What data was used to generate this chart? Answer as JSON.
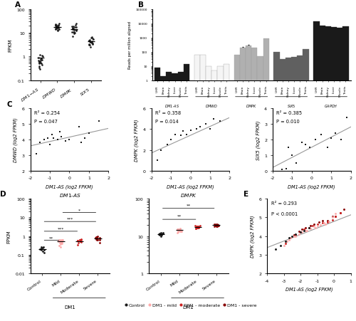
{
  "panel_A": {
    "ylabel": "FPKM",
    "categories": [
      "DM1-AS",
      "DMWD",
      "DMPK",
      "SIX5"
    ],
    "data": {
      "DM1-AS": [
        0.3,
        0.45,
        0.5,
        0.55,
        0.6,
        0.65,
        0.7,
        0.75,
        0.8,
        0.85,
        0.9,
        1.0,
        1.1,
        0.4,
        0.35,
        0.5,
        0.6,
        0.7,
        1.2,
        0.55
      ],
      "DMWD": [
        12,
        14,
        15,
        16,
        18,
        20,
        22,
        18,
        17,
        15,
        13,
        21,
        23,
        25,
        14,
        16,
        19,
        20,
        22,
        16
      ],
      "DMPK": [
        7,
        9,
        11,
        13,
        15,
        17,
        19,
        13,
        11,
        15,
        17,
        21,
        24,
        13,
        10,
        12,
        16,
        14,
        18,
        11
      ],
      "SIX5": [
        2.5,
        3.0,
        3.5,
        4.0,
        5.0,
        6.0,
        4.5,
        3.2,
        4.8,
        5.5,
        3.8,
        4.5,
        3.2,
        5.8,
        6.5,
        3.8,
        4.5,
        3.0,
        4.2,
        4.8
      ]
    },
    "medians": {
      "DM1-AS": 0.9,
      "DMWD": 17.5,
      "DMPK": 14.5,
      "SIX5": 4.3
    },
    "ylim": [
      0.1,
      100
    ],
    "yticks": [
      0.1,
      1,
      10,
      100
    ]
  },
  "panel_B": {
    "ylabel": "Reads per million aligned",
    "gene_groups": [
      "DM1-AS",
      "DMWD",
      "DMPK",
      "SIX5",
      "GAPDH"
    ],
    "tissues": [
      "UHR",
      "Brain",
      "Kidney",
      "Liver",
      "Muscle",
      "Testis"
    ],
    "bar_colors": {
      "DM1-AS": "#1a1a1a",
      "DMWD": "#f5f5f5",
      "DMPK": "#b0b0b0",
      "SIX5": "#606060",
      "GAPDH": "#1a1a1a"
    },
    "bar_edge_colors": {
      "DM1-AS": "#1a1a1a",
      "DMWD": "#999999",
      "DMPK": "#999999",
      "SIX5": "#606060",
      "GAPDH": "#1a1a1a"
    },
    "data": {
      "DM1-AS": [
        8,
        2,
        4,
        3,
        4,
        13
      ],
      "DMWD": [
        60,
        60,
        10,
        5,
        10,
        14
      ],
      "DMPK": [
        60,
        200,
        280,
        200,
        50,
        900
      ],
      "SIX5": [
        100,
        30,
        40,
        45,
        55,
        160
      ],
      "GAPDH": [
        13000,
        7000,
        6000,
        5500,
        5000,
        5800
      ]
    },
    "error": {
      "DM1-AS": [
        0,
        0,
        0,
        0,
        0,
        0
      ],
      "DMWD": [
        0,
        0,
        0,
        0,
        0,
        0
      ],
      "DMPK": [
        0,
        25,
        25,
        0,
        0,
        0
      ],
      "SIX5": [
        0,
        0,
        0,
        0,
        0,
        0
      ],
      "GAPDH": [
        0,
        0,
        0,
        0,
        0,
        0
      ]
    },
    "ylim_min": 1,
    "ylim_max": 100000,
    "ytick_labels": [
      "1",
      "10",
      "100",
      "1000",
      "10000",
      "100000"
    ]
  },
  "panel_C": {
    "plots": [
      {
        "xlabel": "DM1-AS (log2 FPKM)",
        "ylabel": "DMWD (log2 FPKM)",
        "r2": "0.254",
        "p": "0.047",
        "xlim": [
          -2,
          2
        ],
        "ylim": [
          2,
          6
        ],
        "yticks": [
          2,
          3,
          4,
          5,
          6
        ],
        "x": [
          -1.7,
          -1.5,
          -1.3,
          -1.1,
          -1.0,
          -0.9,
          -0.8,
          -0.6,
          -0.5,
          -0.4,
          -0.2,
          0.0,
          0.5,
          0.6,
          0.8,
          1.0,
          1.5
        ],
        "y": [
          3.1,
          3.8,
          4.0,
          4.1,
          3.7,
          4.3,
          4.1,
          4.0,
          4.5,
          4.2,
          3.9,
          4.0,
          4.8,
          3.8,
          4.1,
          4.4,
          5.2
        ],
        "slope": 0.28,
        "intercept": 4.15
      },
      {
        "xlabel": "DM1-AS (log2 FPKM)",
        "ylabel": "DMPK (log2 FPKM)",
        "r2": "0.358",
        "p": "0.014",
        "xlim": [
          -2,
          2
        ],
        "ylim": [
          0,
          6
        ],
        "yticks": [
          0,
          2,
          4,
          6
        ],
        "x": [
          -1.7,
          -1.5,
          -1.2,
          -1.0,
          -0.8,
          -0.5,
          -0.4,
          -0.2,
          0.0,
          0.3,
          0.5,
          0.8,
          1.0,
          1.2,
          1.5
        ],
        "y": [
          1.0,
          2.0,
          2.5,
          3.0,
          3.5,
          3.4,
          3.8,
          3.5,
          3.9,
          4.0,
          4.2,
          4.5,
          4.0,
          5.0,
          4.8
        ],
        "slope": 0.85,
        "intercept": 3.4
      },
      {
        "xlabel": "DM1-AS (log2 FPKM)",
        "ylabel": "SIX5 (log2 FPKM)",
        "r2": "0.385",
        "p": "0.010",
        "xlim": [
          -2,
          2
        ],
        "ylim": [
          0,
          4
        ],
        "yticks": [
          0,
          1,
          2,
          3,
          4
        ],
        "x": [
          -1.5,
          -1.3,
          -1.2,
          -1.0,
          -0.8,
          -0.5,
          -0.3,
          -0.1,
          0.2,
          0.5,
          0.8,
          1.0,
          1.2,
          1.5,
          1.8
        ],
        "y": [
          0.1,
          0.15,
          1.5,
          1.0,
          0.5,
          1.8,
          1.7,
          1.5,
          2.0,
          2.3,
          1.5,
          2.1,
          2.4,
          2.0,
          3.4
        ],
        "slope": 0.65,
        "intercept": 1.5
      }
    ]
  },
  "panel_D": {
    "title_left": "DM1-AS",
    "title_right": "DMPK",
    "ylabel": "FPKM",
    "categories": [
      "Control",
      "Mild",
      "Moderate",
      "Severe"
    ],
    "DM1AS_data": {
      "Control": [
        0.13,
        0.15,
        0.18,
        0.2,
        0.22,
        0.25,
        0.27,
        0.23,
        0.19
      ],
      "Mild": [
        0.25,
        0.3,
        0.4,
        0.5,
        0.55,
        0.6,
        0.65,
        0.45,
        0.5,
        0.55,
        0.6,
        0.5,
        0.42,
        0.58,
        0.52,
        0.62,
        0.43,
        0.38,
        0.48,
        0.58
      ],
      "Moderate": [
        0.35,
        0.45,
        0.55,
        0.65,
        0.5,
        0.6,
        0.7,
        0.5,
        0.58,
        0.48,
        0.62,
        0.52
      ],
      "Severe": [
        0.45,
        0.6,
        0.7,
        0.85,
        0.95,
        0.65,
        0.75,
        0.82,
        0.72,
        0.62,
        0.88,
        0.78,
        0.68,
        0.82,
        0.88
      ]
    },
    "DMPK_data": {
      "Control": [
        10,
        10.5,
        11,
        11.5,
        12,
        11,
        10.5,
        11.5,
        10.8,
        11.2,
        12.5,
        11.8
      ],
      "Mild": [
        12,
        13,
        14,
        15,
        15.5,
        14.5,
        13.5,
        15.5,
        14.5,
        13.8,
        14.8,
        13.2,
        14.2,
        15.0,
        15.8,
        14.0,
        14.6,
        13.3,
        14.1,
        15.5
      ],
      "Moderate": [
        16,
        17,
        18,
        19,
        18.5,
        17.5,
        16.5,
        18.2,
        17.2,
        18.0,
        18.8,
        16.2,
        17.0
      ],
      "Severe": [
        18,
        19,
        19.5,
        20,
        20.5,
        19,
        18.5,
        19.2,
        20.0,
        20.8,
        19.5,
        20.2,
        18.3,
        19.3,
        20.3
      ]
    },
    "DM1AS_medians": {
      "Control": 0.2,
      "Mild": 0.51,
      "Moderate": 0.54,
      "Severe": 0.75
    },
    "DMPK_medians": {
      "Control": 11.2,
      "Mild": 14.6,
      "Moderate": 17.6,
      "Severe": 19.5
    },
    "DM1AS_ylim": [
      0.01,
      100
    ],
    "DM1AS_yticks": [
      0.01,
      0.1,
      1,
      10,
      100
    ],
    "DMPK_ylim": [
      1,
      100
    ],
    "DMPK_yticks": [
      1,
      10,
      100
    ],
    "sig_DM1AS": [
      [
        1,
        2,
        "**",
        0.6
      ],
      [
        1,
        3,
        "***",
        1.8
      ],
      [
        1,
        4,
        "***",
        6.0
      ],
      [
        2,
        4,
        "*",
        18.0
      ]
    ],
    "sig_DMPK": [
      [
        1,
        3,
        "**",
        28
      ],
      [
        1,
        4,
        "**",
        55
      ]
    ],
    "cat_colors": {
      "Control": "#1a1a1a",
      "Mild": "#ffaaaa",
      "Moderate": "#cc2222",
      "Severe": "#880000"
    }
  },
  "panel_E": {
    "xlabel": "DM1-AS (log2 FPKM)",
    "ylabel": "DMPK (log2 FPKM)",
    "r2": "0.293",
    "p": "< 0.0001",
    "xlim": [
      -4,
      1
    ],
    "ylim": [
      2,
      6
    ],
    "yticks": [
      2,
      3,
      4,
      5,
      6
    ],
    "xticks": [
      -4,
      -3,
      -2,
      -1,
      0,
      1
    ],
    "control_x": [
      -3.5,
      -3.2,
      -2.9,
      -2.7,
      -2.5,
      -2.3,
      -2.0,
      -1.8,
      -1.5
    ],
    "control_y": [
      3.3,
      3.5,
      3.7,
      3.9,
      4.0,
      4.1,
      4.2,
      4.3,
      4.45
    ],
    "mild_x": [
      -3.0,
      -2.8,
      -2.6,
      -2.3,
      -2.1,
      -1.9,
      -1.7,
      -1.4,
      -1.2,
      -1.0,
      -0.8,
      -0.6,
      -0.3,
      -0.1,
      0.1,
      -2.4,
      -1.6,
      -1.1,
      -0.5,
      -2.7
    ],
    "mild_y": [
      3.5,
      3.7,
      3.9,
      4.0,
      4.1,
      4.2,
      4.3,
      4.4,
      4.5,
      4.55,
      4.6,
      4.7,
      4.8,
      5.0,
      5.2,
      4.0,
      4.3,
      4.45,
      4.65,
      3.8
    ],
    "moderate_x": [
      -2.9,
      -2.6,
      -2.3,
      -2.0,
      -1.8,
      -1.5,
      -1.3,
      -1.0,
      -0.7,
      -0.4,
      -0.1,
      0.1,
      0.4
    ],
    "moderate_y": [
      3.6,
      3.9,
      4.05,
      4.2,
      4.35,
      4.45,
      4.55,
      4.65,
      4.7,
      4.75,
      4.85,
      5.05,
      5.25
    ],
    "severe_x": [
      -2.4,
      -2.1,
      -1.9,
      -1.7,
      -1.4,
      -1.2,
      -0.9,
      -0.7,
      -0.4,
      -0.1,
      0.1,
      0.4,
      0.6
    ],
    "severe_y": [
      4.05,
      4.25,
      4.35,
      4.45,
      4.55,
      4.65,
      4.75,
      4.82,
      4.82,
      5.05,
      5.05,
      5.25,
      5.45
    ],
    "slope": 0.35,
    "intercept": 4.78,
    "colors": {
      "Control": "#1a1a1a",
      "Mild": "#ffaaaa",
      "Moderate": "#cc2222",
      "Severe": "#880000"
    }
  },
  "legend": {
    "entries": [
      "Control",
      "DM1 - mild",
      "DM1 - moderate",
      "DM1 - severe"
    ],
    "colors": [
      "#1a1a1a",
      "#ffaaaa",
      "#cc2222",
      "#880000"
    ]
  },
  "scatter_color": "#1a1a1a",
  "line_color": "#999999",
  "fontsize_label": 5.0,
  "fontsize_tick": 4.5,
  "fontsize_panel": 7.5
}
